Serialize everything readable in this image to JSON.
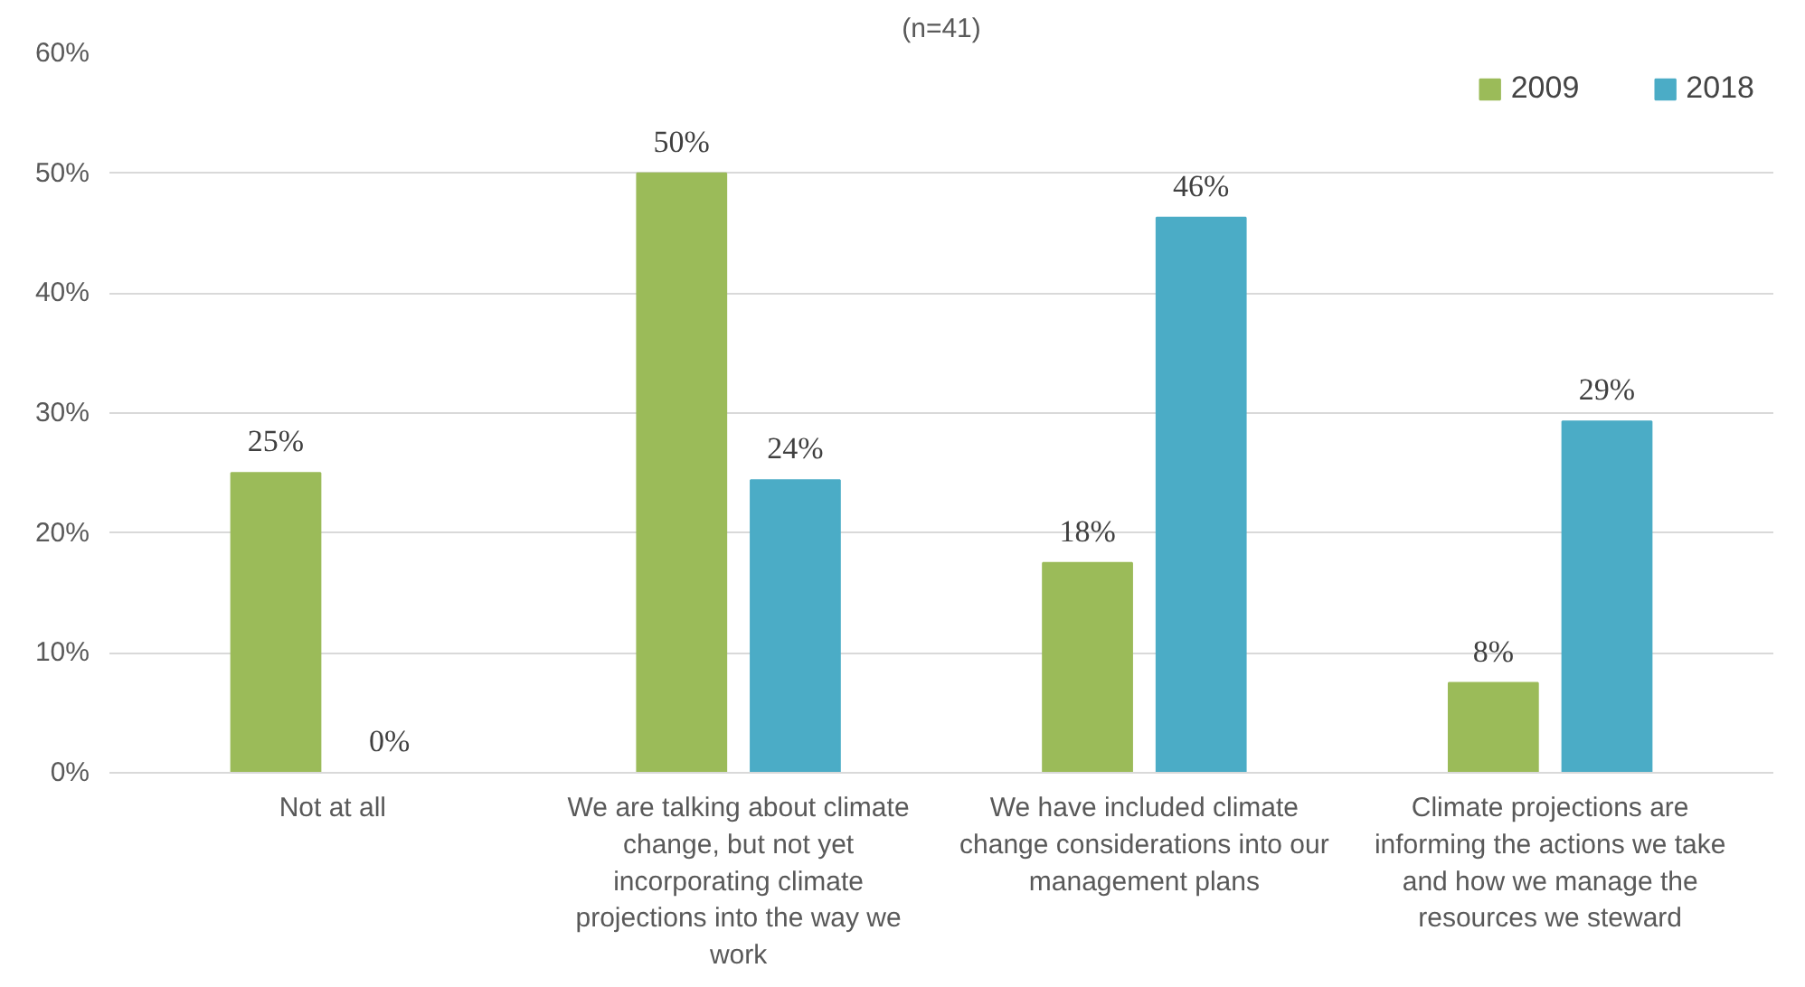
{
  "chart_data": {
    "type": "bar",
    "subtitle": "(n=41)",
    "categories": [
      "Not at all",
      "We are talking about climate change, but not yet incorporating climate projections into the way we work",
      "We have included climate change considerations into our management plans",
      "Climate projections are informing the actions we take and how we manage the resources we steward"
    ],
    "series": [
      {
        "name": "2009",
        "color": "#9bbb59",
        "values": [
          25,
          50,
          17.5,
          7.5
        ],
        "value_labels": [
          "25%",
          "50%",
          "18%",
          "8%"
        ]
      },
      {
        "name": "2018",
        "color": "#4bacc6",
        "values": [
          0,
          24.4,
          46.3,
          29.3
        ],
        "value_labels": [
          "0%",
          "24%",
          "46%",
          "29%"
        ]
      }
    ],
    "ylim": [
      0,
      60
    ],
    "yticks": [
      {
        "value": 0,
        "label": "0%"
      },
      {
        "value": 10,
        "label": "10%"
      },
      {
        "value": 20,
        "label": "20%"
      },
      {
        "value": 30,
        "label": "30%"
      },
      {
        "value": 40,
        "label": "40%"
      },
      {
        "value": 50,
        "label": "50%"
      },
      {
        "value": 60,
        "label": "60%"
      }
    ],
    "grid": "y",
    "legend": "top right"
  }
}
